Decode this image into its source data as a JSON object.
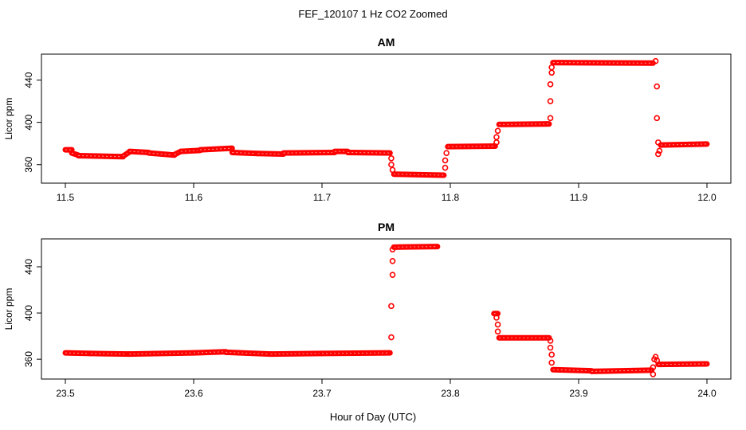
{
  "figure": {
    "title": "FEF_120107  1 Hz CO2 Zoomed",
    "xlabel": "Hour of Day (UTC)"
  },
  "colors": {
    "points": "#ff0000",
    "axis": "#000000",
    "background": "#ffffff"
  },
  "chart_data": [
    {
      "type": "scatter",
      "title": "AM",
      "xlabel": "",
      "ylabel": "Licor ppm",
      "xlim": [
        11.5,
        12.0
      ],
      "ylim": [
        347,
        460
      ],
      "xticks": [
        "11.5",
        "11.6",
        "11.7",
        "11.8",
        "11.9",
        "12.0"
      ],
      "yticks": [
        "360",
        "400",
        "440"
      ],
      "grid": false,
      "legend": "none",
      "segments": [
        [
          11.5,
          374.0,
          11.505,
          374.0
        ],
        [
          11.505,
          371.0,
          11.51,
          369.0
        ],
        [
          11.51,
          368.5,
          11.545,
          367.5
        ],
        [
          11.545,
          368.0,
          11.55,
          372.0
        ],
        [
          11.55,
          372.5,
          11.565,
          371.5
        ],
        [
          11.565,
          371.0,
          11.585,
          369.0
        ],
        [
          11.585,
          369.5,
          11.59,
          372.5
        ],
        [
          11.59,
          372.5,
          11.605,
          373.5
        ],
        [
          11.605,
          374.0,
          11.63,
          375.5
        ],
        [
          11.63,
          371.5,
          11.65,
          370.5
        ],
        [
          11.65,
          370.5,
          11.67,
          370.0
        ],
        [
          11.67,
          371.0,
          11.71,
          371.5
        ],
        [
          11.71,
          372.5,
          11.72,
          372.5
        ],
        [
          11.72,
          371.5,
          11.753,
          371.0
        ],
        [
          11.756,
          351.0,
          11.795,
          350.0
        ],
        [
          11.798,
          377.0,
          11.835,
          377.5
        ],
        [
          11.838,
          398.0,
          11.877,
          398.5
        ],
        [
          11.88,
          456.5,
          11.958,
          456.0
        ],
        [
          11.964,
          378.5,
          12.0,
          379.5
        ]
      ],
      "points": [
        [
          11.754,
          366
        ],
        [
          11.754,
          360
        ],
        [
          11.755,
          355
        ],
        [
          11.796,
          357
        ],
        [
          11.796,
          364
        ],
        [
          11.797,
          371
        ],
        [
          11.836,
          381
        ],
        [
          11.836,
          386
        ],
        [
          11.837,
          392
        ],
        [
          11.878,
          404
        ],
        [
          11.878,
          420
        ],
        [
          11.878,
          436
        ],
        [
          11.879,
          447
        ],
        [
          11.879,
          452
        ],
        [
          11.96,
          458
        ],
        [
          11.961,
          434
        ],
        [
          11.961,
          404
        ],
        [
          11.962,
          381
        ],
        [
          11.962,
          370
        ],
        [
          11.963,
          373
        ]
      ]
    },
    {
      "type": "scatter",
      "title": "PM",
      "xlabel": "",
      "ylabel": "Licor ppm",
      "xlim": [
        23.5,
        24.0
      ],
      "ylim": [
        347,
        460
      ],
      "xticks": [
        "23.5",
        "23.6",
        "23.7",
        "23.8",
        "23.9",
        "24.0"
      ],
      "yticks": [
        "360",
        "400",
        "440"
      ],
      "grid": false,
      "legend": "none",
      "segments": [
        [
          23.5,
          365.5,
          23.52,
          365.0
        ],
        [
          23.52,
          365.0,
          23.55,
          364.5
        ],
        [
          23.55,
          364.5,
          23.6,
          365.5
        ],
        [
          23.6,
          365.5,
          23.625,
          366.5
        ],
        [
          23.625,
          366.0,
          23.66,
          364.5
        ],
        [
          23.66,
          364.5,
          23.7,
          365.0
        ],
        [
          23.7,
          365.0,
          23.753,
          365.5
        ],
        [
          23.756,
          457.0,
          23.79,
          457.5
        ],
        [
          23.834,
          399.5,
          23.837,
          399.5
        ],
        [
          23.838,
          378.5,
          23.877,
          378.5
        ],
        [
          23.88,
          351.0,
          23.91,
          350.0
        ],
        [
          23.91,
          349.5,
          23.957,
          350.5
        ],
        [
          23.962,
          355.5,
          24.0,
          356.0
        ]
      ],
      "points": [
        [
          23.754,
          379
        ],
        [
          23.754,
          406
        ],
        [
          23.755,
          433
        ],
        [
          23.755,
          445
        ],
        [
          23.755,
          455
        ],
        [
          23.836,
          396
        ],
        [
          23.837,
          390
        ],
        [
          23.837,
          384
        ],
        [
          23.878,
          376
        ],
        [
          23.878,
          370
        ],
        [
          23.879,
          364
        ],
        [
          23.879,
          357
        ],
        [
          23.958,
          347
        ],
        [
          23.958,
          353
        ],
        [
          23.959,
          360
        ],
        [
          23.96,
          362
        ],
        [
          23.961,
          359
        ]
      ]
    }
  ]
}
